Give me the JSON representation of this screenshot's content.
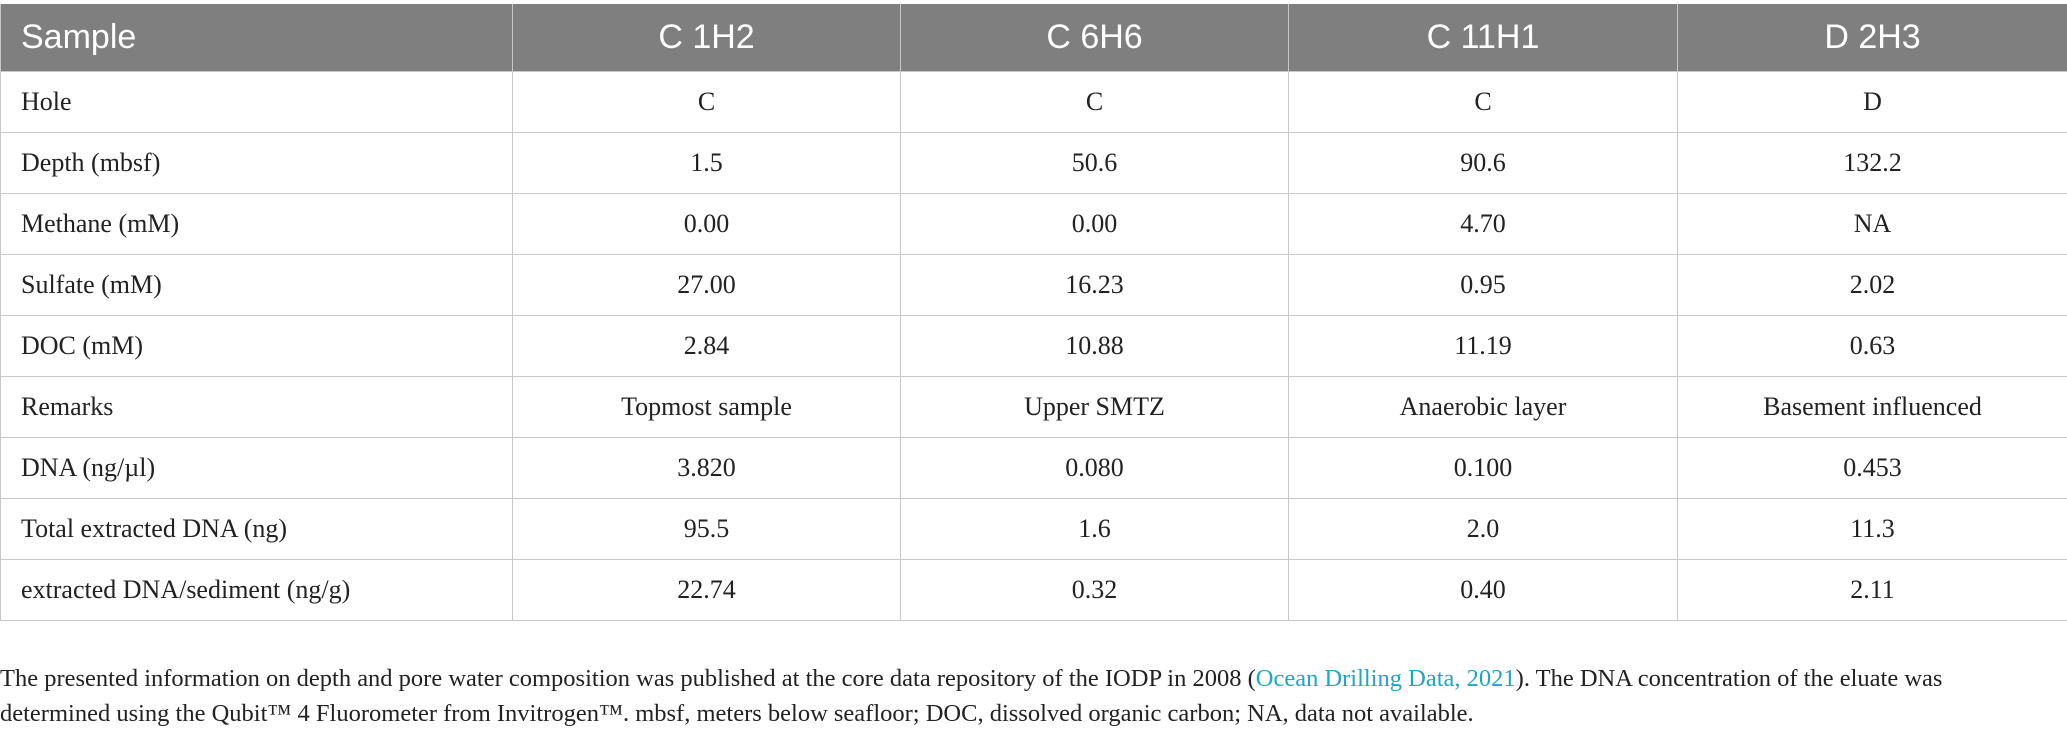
{
  "table": {
    "headers": [
      "Sample",
      "C 1H2",
      "C 6H6",
      "C 11H1",
      "D 2H3"
    ],
    "rows": [
      [
        "Hole",
        "C",
        "C",
        "C",
        "D"
      ],
      [
        "Depth (mbsf)",
        "1.5",
        "50.6",
        "90.6",
        "132.2"
      ],
      [
        "Methane (mM)",
        "0.00",
        "0.00",
        "4.70",
        "NA"
      ],
      [
        "Sulfate (mM)",
        "27.00",
        "16.23",
        "0.95",
        "2.02"
      ],
      [
        "DOC (mM)",
        "2.84",
        "10.88",
        "11.19",
        "0.63"
      ],
      [
        "Remarks",
        "Topmost sample",
        "Upper SMTZ",
        "Anaerobic layer",
        "Basement influenced"
      ],
      [
        "DNA (ng/µl)",
        "3.820",
        "0.080",
        "0.100",
        "0.453"
      ],
      [
        "Total extracted DNA (ng)",
        "95.5",
        "1.6",
        "2.0",
        "11.3"
      ],
      [
        "extracted DNA/sediment (ng/g)",
        "22.74",
        "0.32",
        "0.40",
        "2.11"
      ]
    ]
  },
  "footnote": {
    "before_link": "The presented information on depth and pore water composition was published at the core data repository of the IODP in 2008 (",
    "link_text": "Ocean Drilling Data, 2021",
    "after_link": "). The DNA concentration of the eluate was determined using the Qubit™ 4 Fluorometer from Invitrogen™. mbsf, meters below seafloor; DOC, dissolved organic carbon; NA, data not available."
  },
  "colors": {
    "header_bg": "#7f7f7f",
    "grid_line": "#c8c8c8",
    "link": "#1aa7c8"
  }
}
